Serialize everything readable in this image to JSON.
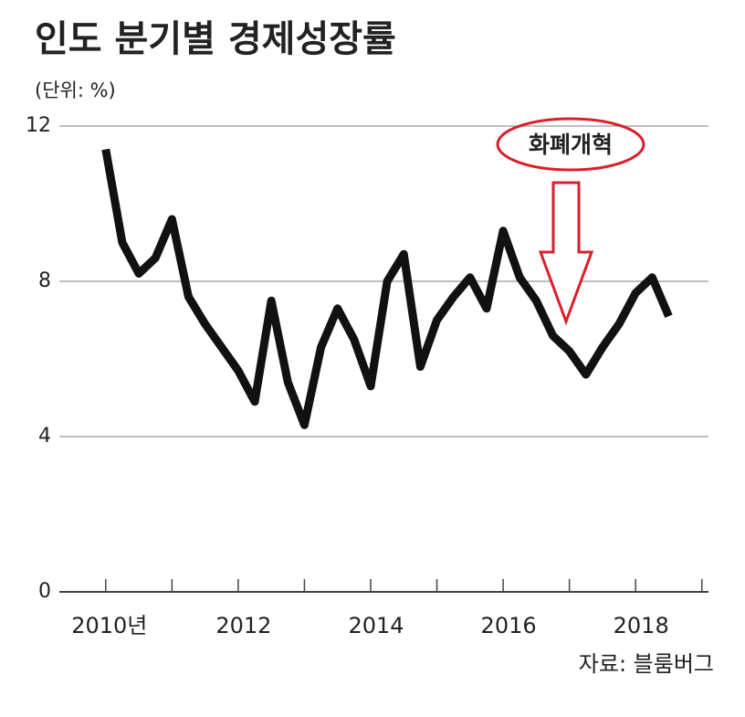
{
  "chart_data": {
    "type": "line",
    "title": "인도 분기별 경제성장률",
    "subtitle": "(단위: %)",
    "source": "자료: 블룸버그",
    "annotation": "화폐개혁",
    "x": [
      2010.0,
      2010.25,
      2010.5,
      2010.75,
      2011.0,
      2011.25,
      2011.5,
      2011.75,
      2012.0,
      2012.25,
      2012.5,
      2012.75,
      2013.0,
      2013.25,
      2013.5,
      2013.75,
      2014.0,
      2014.25,
      2014.5,
      2014.75,
      2015.0,
      2015.25,
      2015.5,
      2015.75,
      2016.0,
      2016.25,
      2016.5,
      2016.75,
      2017.0,
      2017.25,
      2017.5,
      2017.75,
      2018.0,
      2018.25,
      2018.5
    ],
    "series": [
      {
        "name": "경제성장률",
        "color": "#111111",
        "values": [
          11.4,
          9.0,
          8.2,
          8.6,
          9.6,
          7.6,
          6.9,
          6.3,
          5.7,
          4.9,
          7.5,
          5.4,
          4.3,
          6.3,
          7.3,
          6.5,
          5.3,
          8.0,
          8.7,
          5.8,
          7.0,
          7.6,
          8.1,
          7.3,
          9.3,
          8.1,
          7.5,
          6.6,
          6.2,
          5.6,
          6.3,
          6.9,
          7.7,
          8.1,
          7.1
        ]
      }
    ],
    "xlim": [
      2009.3,
      2019.1
    ],
    "xticks": [
      {
        "value": 2010,
        "label": "2010년"
      },
      2012,
      2014,
      2016,
      2018
    ],
    "xminorticks": [
      2011,
      2013,
      2015,
      2017,
      2019
    ],
    "ylim": [
      0,
      12
    ],
    "yticks": [
      0,
      4,
      8,
      12
    ],
    "grid": true
  }
}
